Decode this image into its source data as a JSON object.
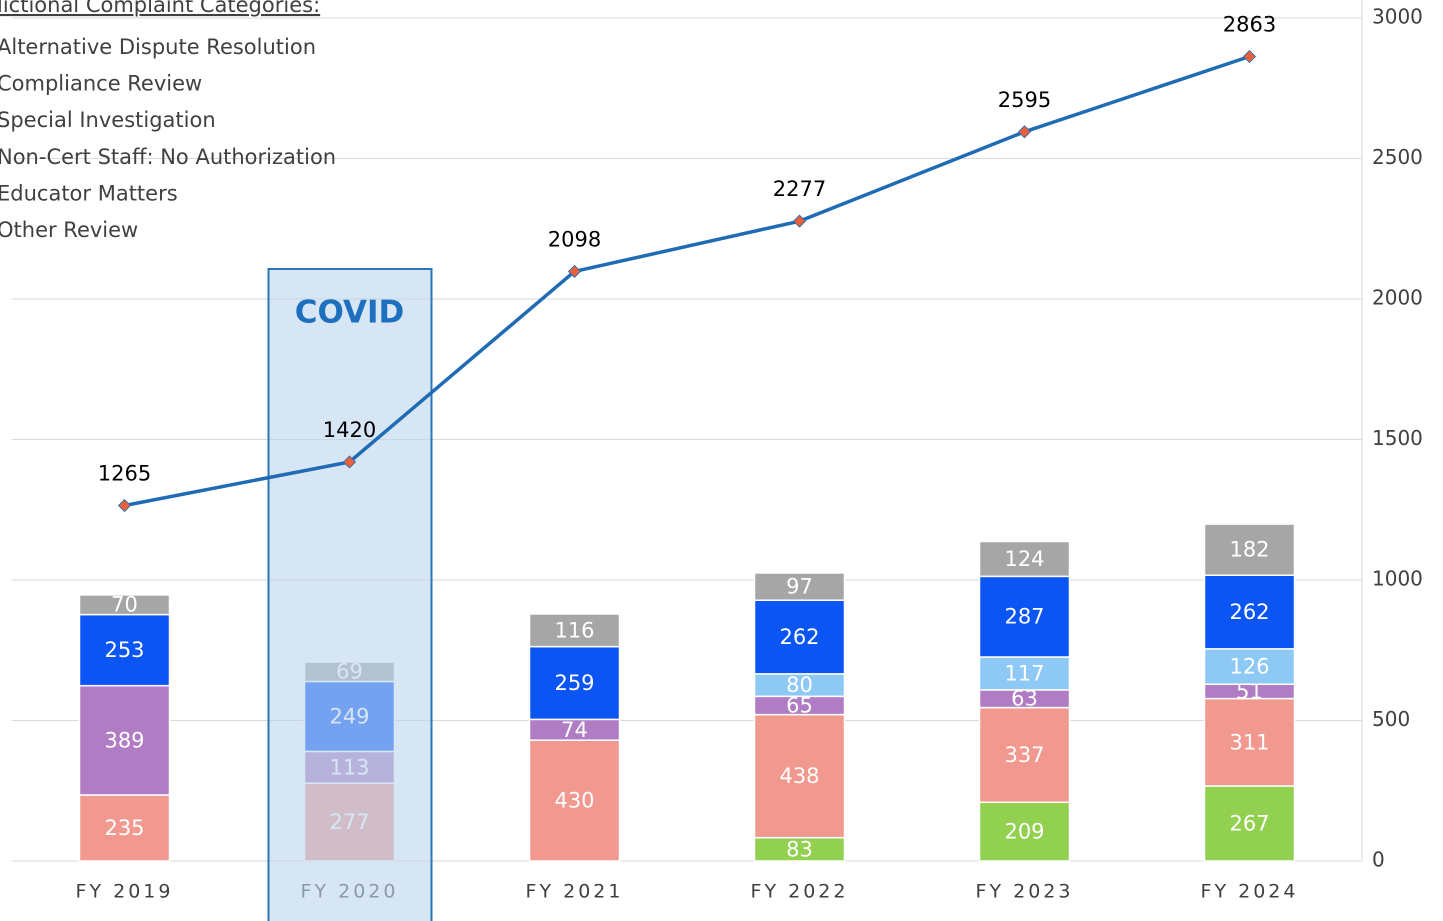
{
  "chart_data": {
    "type": "stacked-bar-line",
    "legend_title": "lictional Complaint Categories:",
    "categories": [
      "FY 2019",
      "FY 2020",
      "FY 2021",
      "FY 2022",
      "FY 2023",
      "FY 2024"
    ],
    "series": [
      {
        "name": "Alternative Dispute Resolution",
        "color": "#92d050",
        "values": [
          null,
          null,
          null,
          83,
          209,
          267
        ]
      },
      {
        "name": "Compliance Review",
        "color": "#f1998f",
        "values": [
          235,
          277,
          430,
          438,
          337,
          311
        ]
      },
      {
        "name": "Special Investigation",
        "color": "#b07dc4",
        "values": [
          389,
          113,
          74,
          65,
          63,
          51
        ]
      },
      {
        "name": "Non-Cert Staff: No Authorization",
        "color": "#8ec9f5",
        "values": [
          null,
          null,
          null,
          80,
          117,
          126
        ]
      },
      {
        "name": "Educator Matters",
        "color": "#0b55f4",
        "values": [
          253,
          249,
          259,
          262,
          287,
          262
        ]
      },
      {
        "name": "Other Review",
        "color": "#a6a6a6",
        "values": [
          70,
          69,
          116,
          97,
          124,
          182
        ]
      }
    ],
    "line": {
      "color": "#1f6cb5",
      "marker_color": "#e8603c",
      "values": [
        1265,
        1420,
        2098,
        2277,
        2595,
        2863
      ]
    },
    "annotation": {
      "text": "COVID",
      "category": 1
    },
    "ylim": [
      0,
      3000
    ],
    "yticks": [
      0,
      500,
      1000,
      1500,
      2000,
      2500,
      3000
    ],
    "grid": true
  }
}
